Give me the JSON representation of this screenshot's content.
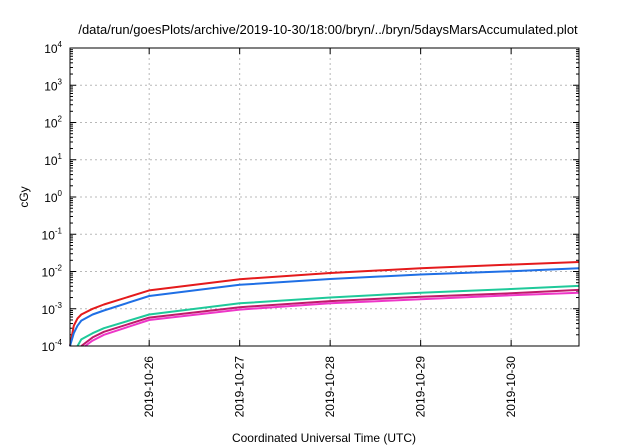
{
  "chart_data": {
    "type": "line",
    "title": "/data/run/goesPlots/archive/2019-10-30/18:00/bryn/../bryn/5daysMarsAccumulated.plot",
    "xlabel": "Coordinated Universal Time (UTC)",
    "ylabel": "cGy",
    "y_scale": "log",
    "ylim": [
      0.0001,
      10000
    ],
    "y_ticks": [
      {
        "base": "10",
        "exp": "-4",
        "value": 0.0001
      },
      {
        "base": "10",
        "exp": "-3",
        "value": 0.001
      },
      {
        "base": "10",
        "exp": "-2",
        "value": 0.01
      },
      {
        "base": "10",
        "exp": "-1",
        "value": 0.1
      },
      {
        "base": "10",
        "exp": "0",
        "value": 1
      },
      {
        "base": "10",
        "exp": "1",
        "value": 10
      },
      {
        "base": "10",
        "exp": "2",
        "value": 100
      },
      {
        "base": "10",
        "exp": "3",
        "value": 1000
      },
      {
        "base": "10",
        "exp": "4",
        "value": 10000
      }
    ],
    "xlim": [
      "2019-10-25T03:00",
      "2019-10-30T18:00"
    ],
    "x_ticks": [
      "2019-10-26",
      "2019-10-27",
      "2019-10-28",
      "2019-10-29",
      "2019-10-30"
    ],
    "grid": true,
    "legend": "none",
    "series": [
      {
        "color": "#e41a1c",
        "x": [
          "2019-10-25T03:00",
          "2019-10-25T04:00",
          "2019-10-25T05:00",
          "2019-10-25T06:00",
          "2019-10-25T09:00",
          "2019-10-25T12:00",
          "2019-10-26T00:00",
          "2019-10-27T00:00",
          "2019-10-28T00:00",
          "2019-10-29T00:00",
          "2019-10-30T00:00",
          "2019-10-30T18:00"
        ],
        "y": [
          0.0001,
          0.00035,
          0.00055,
          0.0007,
          0.001,
          0.0013,
          0.0031,
          0.0062,
          0.0091,
          0.0122,
          0.0153,
          0.018
        ]
      },
      {
        "color": "#1f6fe5",
        "x": [
          "2019-10-25T03:00",
          "2019-10-25T04:00",
          "2019-10-25T05:00",
          "2019-10-25T06:00",
          "2019-10-25T09:00",
          "2019-10-25T12:00",
          "2019-10-26T00:00",
          "2019-10-27T00:00",
          "2019-10-28T00:00",
          "2019-10-29T00:00",
          "2019-10-30T00:00",
          "2019-10-30T18:00"
        ],
        "y": [
          0.0001,
          0.00022,
          0.00035,
          0.00048,
          0.0007,
          0.0009,
          0.0022,
          0.0044,
          0.0063,
          0.0083,
          0.0102,
          0.0122
        ]
      },
      {
        "color": "#1fc99a",
        "x": [
          "2019-10-25T05:00",
          "2019-10-25T06:00",
          "2019-10-25T09:00",
          "2019-10-25T12:00",
          "2019-10-26T00:00",
          "2019-10-27T00:00",
          "2019-10-28T00:00",
          "2019-10-29T00:00",
          "2019-10-30T00:00",
          "2019-10-30T18:00"
        ],
        "y": [
          0.0001,
          0.00015,
          0.00022,
          0.0003,
          0.0007,
          0.0014,
          0.002,
          0.0027,
          0.0034,
          0.0041
        ]
      },
      {
        "color": "#c01a6a",
        "x": [
          "2019-10-25T06:00",
          "2019-10-25T09:00",
          "2019-10-25T12:00",
          "2019-10-26T00:00",
          "2019-10-27T00:00",
          "2019-10-28T00:00",
          "2019-10-29T00:00",
          "2019-10-30T00:00",
          "2019-10-30T18:00"
        ],
        "y": [
          0.0001,
          0.00017,
          0.00024,
          0.00058,
          0.0011,
          0.0016,
          0.0021,
          0.0026,
          0.0032
        ]
      },
      {
        "color": "#ee36c8",
        "x": [
          "2019-10-25T07:00",
          "2019-10-25T09:00",
          "2019-10-25T12:00",
          "2019-10-26T00:00",
          "2019-10-27T00:00",
          "2019-10-28T00:00",
          "2019-10-29T00:00",
          "2019-10-30T00:00",
          "2019-10-30T18:00"
        ],
        "y": [
          0.0001,
          0.00014,
          0.0002,
          0.0005,
          0.00095,
          0.0014,
          0.0018,
          0.0023,
          0.0027
        ]
      }
    ]
  }
}
